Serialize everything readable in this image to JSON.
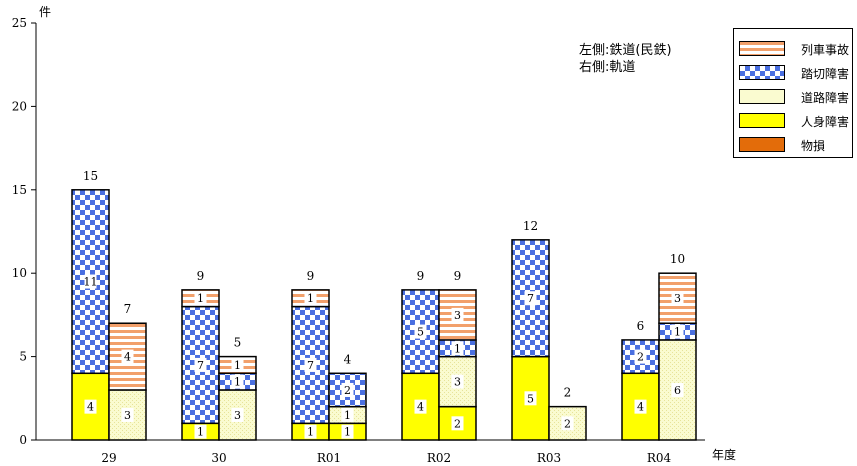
{
  "chart_data": {
    "type": "bar",
    "y_unit": "件",
    "x_unit": "年度",
    "categories": [
      "29",
      "30",
      "R01",
      "R02",
      "R03",
      "R04"
    ],
    "ylim": [
      0,
      25
    ],
    "yticks": [
      0,
      5,
      10,
      15,
      20,
      25
    ],
    "groups": [
      {
        "name": "鉄道(民鉄)",
        "label": "左側:鉄道(民鉄)"
      },
      {
        "name": "軌道",
        "label": "右側:軌道"
      }
    ],
    "legend_position": "top-right",
    "series": [
      {
        "name": "列車事故",
        "color": "#f2a06b"
      },
      {
        "name": "踏切障害",
        "color": "#4a6fe0"
      },
      {
        "name": "道路障害",
        "color": "#fafbd0"
      },
      {
        "name": "人身障害",
        "color": "#ffff00"
      },
      {
        "name": "物損",
        "color": "#e36c0a"
      }
    ],
    "stacks": {
      "鉄道(民鉄)": {
        "人身障害": [
          4,
          1,
          1,
          4,
          5,
          4
        ],
        "道路障害": [
          0,
          0,
          0,
          0,
          0,
          0
        ],
        "踏切障害": [
          11,
          7,
          7,
          5,
          7,
          2
        ],
        "列車事故": [
          0,
          1,
          1,
          0,
          0,
          0
        ],
        "物損": [
          0,
          0,
          0,
          0,
          0,
          0
        ]
      },
      "軌道": {
        "人身障害": [
          0,
          0,
          1,
          2,
          0,
          0
        ],
        "道路障害": [
          3,
          3,
          1,
          3,
          2,
          6
        ],
        "踏切障害": [
          0,
          1,
          2,
          1,
          0,
          1
        ],
        "列車事故": [
          4,
          1,
          0,
          3,
          0,
          3
        ],
        "物損": [
          0,
          0,
          0,
          0,
          0,
          0
        ]
      }
    },
    "totals": {
      "鉄道(民鉄)": [
        15,
        9,
        9,
        9,
        12,
        6
      ],
      "軌道": [
        7,
        5,
        4,
        9,
        2,
        10
      ]
    }
  }
}
